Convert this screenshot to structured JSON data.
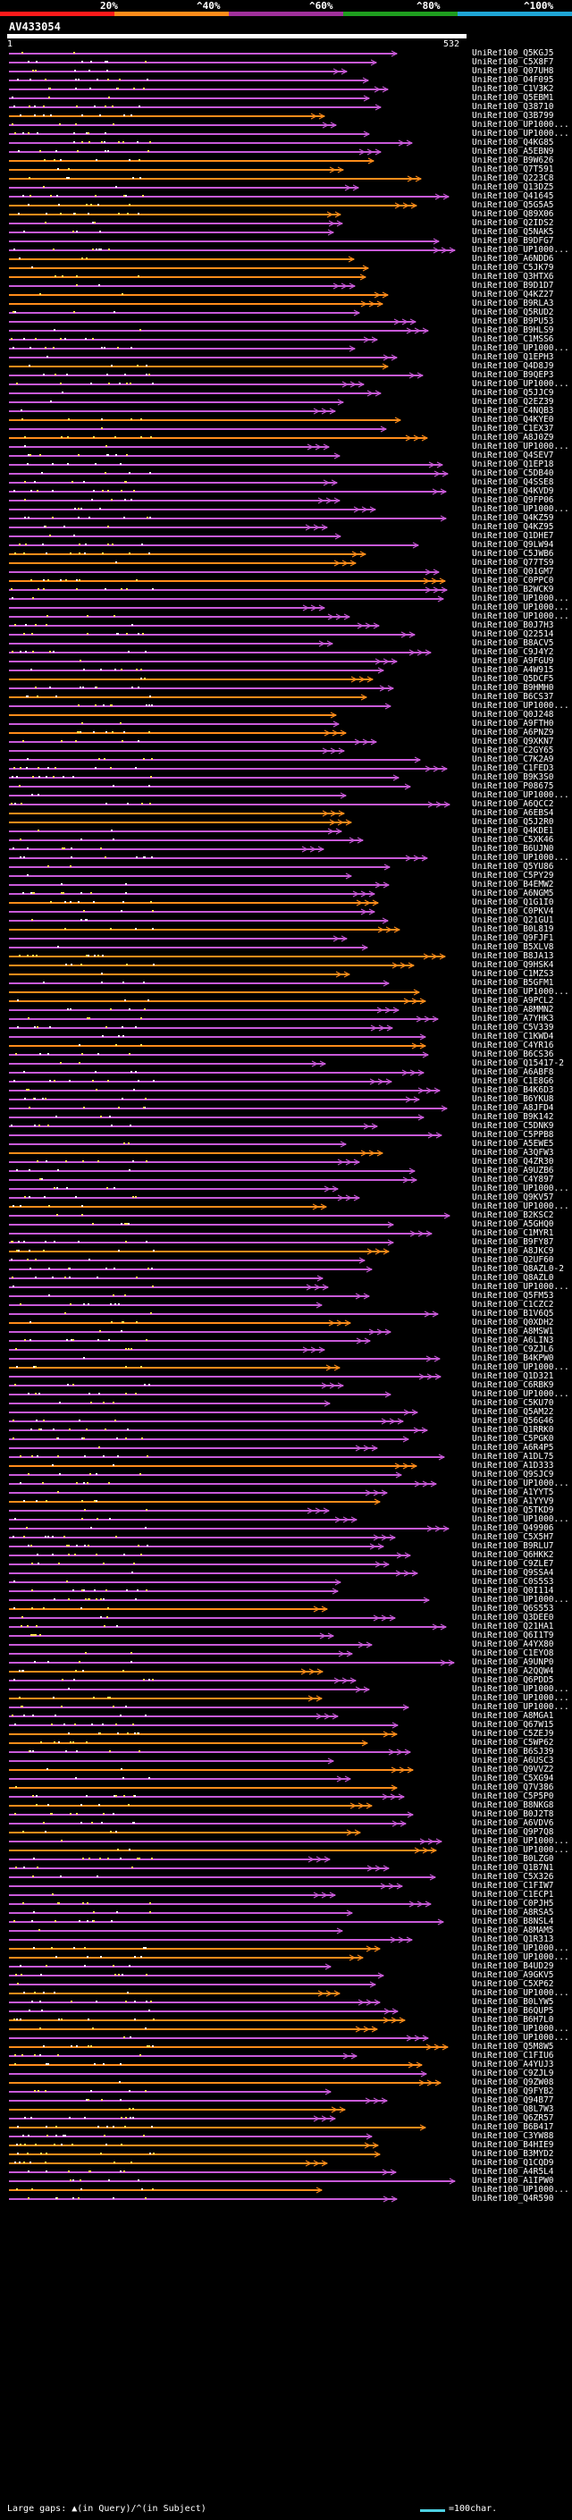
{
  "scale": {
    "labels": [
      "20%",
      "^40%",
      "^60%",
      "^80%",
      "^100%"
    ],
    "colors": [
      "#ff1a1a",
      "#ff8c1a",
      "#a0309b",
      "#1f9e1f",
      "#1fa6d6"
    ]
  },
  "query": {
    "name": "AV433054",
    "start": "1",
    "end": "532"
  },
  "hits": [
    "UniRef100_Q5KGJ5",
    "UniRef100_C5X8F7",
    "UniRef100_Q07UH8",
    "UniRef100_O4F095",
    "UniRef100_C1V3K2",
    "UniRef100_Q5EBM1",
    "UniRef100_Q38710",
    "UniRef100_Q3B799",
    "UniRef100_UP1000...",
    "UniRef100_UP1000...",
    "UniRef100_Q4KG85",
    "UniRef100_A5EBN9",
    "UniRef100_B9W626",
    "UniRef100_Q7T591",
    "UniRef100_Q223C8",
    "UniRef100_Q13DZ5",
    "UniRef100_Q41645",
    "UniRef100_Q5G5A5",
    "UniRef100_Q89X06",
    "UniRef100_Q2IDS2",
    "UniRef100_Q5NAK5",
    "UniRef100_B9DFG7",
    "UniRef100_UP1000...",
    "UniRef100_A6NDD6",
    "UniRef100_C5JK79",
    "UniRef100_Q3HTX6",
    "UniRef100_B9D1D7",
    "UniRef100_Q4KZ27",
    "UniRef100_B9RLA3",
    "UniRef100_Q5RUD2",
    "UniRef100_B9PU53",
    "UniRef100_B9HLS9",
    "UniRef100_C1MSS6",
    "UniRef100_UP1000...",
    "UniRef100_Q1EPH3",
    "UniRef100_Q4D8J9",
    "UniRef100_B9QEP3",
    "UniRef100_UP1000...",
    "UniRef100_Q5JJC9",
    "UniRef100_Q2EZ39",
    "UniRef100_C4NQB3",
    "UniRef100_Q4KYE0",
    "UniRef100_C1EX37",
    "UniRef100_A8J0Z9",
    "UniRef100_UP1000...",
    "UniRef100_Q4SEV7",
    "UniRef100_Q1EP18",
    "UniRef100_C5DB40",
    "UniRef100_Q4SSE8",
    "UniRef100_Q4KVD9",
    "UniRef100_Q9FP06",
    "UniRef100_UP1000...",
    "UniRef100_Q4KZ59",
    "UniRef100_Q4KZ95",
    "UniRef100_Q1DHE7",
    "UniRef100_Q9LW94",
    "UniRef100_C5JWB6",
    "UniRef100_Q77TS9",
    "UniRef100_Q01GM7",
    "UniRef100_C0PPC0",
    "UniRef100_B2WCK9",
    "UniRef100_UP1000...",
    "UniRef100_UP1000...",
    "UniRef100_UP1000...",
    "UniRef100_B0J7H3",
    "UniRef100_Q22514",
    "UniRef100_B8ACV5",
    "UniRef100_C9J4Y2",
    "UniRef100_A9FGU9",
    "UniRef100_A4W915",
    "UniRef100_Q5DCF5",
    "UniRef100_B9HMH0",
    "UniRef100_B6CS37",
    "UniRef100_UP1000...",
    "UniRef100_Q0J248",
    "UniRef100_A9FTH0",
    "UniRef100_A6PNZ9",
    "UniRef100_Q9XKN7",
    "UniRef100_C2GY65",
    "UniRef100_C7K2A9",
    "UniRef100_C1FED3",
    "UniRef100_B9K3S0",
    "UniRef100_P08675",
    "UniRef100_UP1000...",
    "UniRef100_A6QCC2",
    "UniRef100_A6EBS4",
    "UniRef100_Q5J2R0",
    "UniRef100_Q4KDE1",
    "UniRef100_C5XK46",
    "UniRef100_B6UJN0",
    "UniRef100_UP1000...",
    "UniRef100_Q5YU86",
    "UniRef100_C5PY29",
    "UniRef100_B4EMW2",
    "UniRef100_A6NGM5",
    "UniRef100_Q1G1I0",
    "UniRef100_C0PKV4",
    "UniRef100_Q21GU1",
    "UniRef100_B0L819",
    "UniRef100_Q9FJF1",
    "UniRef100_B5XLV8",
    "UniRef100_B8JA13",
    "UniRef100_Q9HSK4",
    "UniRef100_C1MZS3",
    "UniRef100_B5GFM1",
    "UniRef100_UP1000...",
    "UniRef100_A9PCL2",
    "UniRef100_A8MMN2",
    "UniRef100_A7YHK3",
    "UniRef100_C5V339",
    "UniRef100_C1KWD4",
    "UniRef100_C4YR16",
    "UniRef100_B6CS36",
    "UniRef100_Q15417-2",
    "UniRef100_A6ABF8",
    "UniRef100_C1E8G6",
    "UniRef100_B4K6D3",
    "UniRef100_B6YKU8",
    "UniRef100_A8JFD4",
    "UniRef100_B9K142",
    "UniRef100_C5DNK9",
    "UniRef100_C5PPB8",
    "UniRef100_A5EWE5",
    "UniRef100_A3QFW3",
    "UniRef100_Q4ZR30",
    "UniRef100_A9UZB6",
    "UniRef100_C4Y897",
    "UniRef100_UP1000...",
    "UniRef100_Q9KV57",
    "UniRef100_UP1000...",
    "UniRef100_B2KSC2",
    "UniRef100_A5GHQ0",
    "UniRef100_C1MYR1",
    "UniRef100_B9FY87",
    "UniRef100_A8JKC9",
    "UniRef100_Q2UF60",
    "UniRef100_Q8AZL0-2",
    "UniRef100_Q8AZL0",
    "UniRef100_UP1000...",
    "UniRef100_Q5FM53",
    "UniRef100_C1CZC2",
    "UniRef100_B1V6Q5",
    "UniRef100_Q0XDH2",
    "UniRef100_A8MSW1",
    "UniRef100_A6LIN3",
    "UniRef100_C9ZJL6",
    "UniRef100_B4KPW0",
    "UniRef100_UP1000...",
    "UniRef100_Q1D321",
    "UniRef100_C6RBK9",
    "UniRef100_UP1000...",
    "UniRef100_C5KU70",
    "UniRef100_Q5AM22",
    "UniRef100_Q56G46",
    "UniRef100_Q1RRK0",
    "UniRef100_C5PGK0",
    "UniRef100_A6R4P5",
    "UniRef100_A1DL75",
    "UniRef100_A1D333",
    "UniRef100_Q9SJC9",
    "UniRef100_UP1000...",
    "UniRef100_A1YYT5",
    "UniRef100_A1YYV9",
    "UniRef100_Q5TKD9",
    "UniRef100_UP1000...",
    "UniRef100_Q49906",
    "UniRef100_C5X5H7",
    "UniRef100_B9RLU7",
    "UniRef100_Q6HKK2",
    "UniRef100_C9ZLE7",
    "UniRef100_Q9SSA4",
    "UniRef100_C0S5S3",
    "UniRef100_Q0I114",
    "UniRef100_UP1000...",
    "UniRef100_Q6S553",
    "UniRef100_Q3DEE0",
    "UniRef100_Q21HA1",
    "UniRef100_Q6I1T9",
    "UniRef100_A4YX80",
    "UniRef100_C1EYO8",
    "UniRef100_A9UNP0",
    "UniRef100_A2QQW4",
    "UniRef100_Q6PDD5",
    "UniRef100_UP1000...",
    "UniRef100_UP1000...",
    "UniRef100_UP1000...",
    "UniRef100_A8MGA1",
    "UniRef100_Q67W15",
    "UniRef100_C5ZEJ9",
    "UniRef100_C5WP62",
    "UniRef100_B6SJ39",
    "UniRef100_A6USC3",
    "UniRef100_Q9VVZ2",
    "UniRef100_C5XG94",
    "UniRef100_Q7V386",
    "UniRef100_C5P5P0",
    "UniRef100_B8NKG8",
    "UniRef100_B0J2T8",
    "UniRef100_A6VDV6",
    "UniRef100_Q9P7Q8",
    "UniRef100_UP1000...",
    "UniRef100_UP1000...",
    "UniRef100_B0LZG0",
    "UniRef100_Q1B7N1",
    "UniRef100_C5X326",
    "UniRef100_C1FIW7",
    "UniRef100_C1ECP1",
    "UniRef100_C0PJH5",
    "UniRef100_A8RSA5",
    "UniRef100_B8NSL4",
    "UniRef100_A8MAM5",
    "UniRef100_Q1R313",
    "UniRef100_UP1000...",
    "UniRef100_UP1000...",
    "UniRef100_B4UD29",
    "UniRef100_A9GKV5",
    "UniRef100_C5XP62",
    "UniRef100_UP1000...",
    "UniRef100_B0LYW5",
    "UniRef100_B6QUP5",
    "UniRef100_B6H7L0",
    "UniRef100_UP1000...",
    "UniRef100_UP1000...",
    "UniRef100_Q5M8W5",
    "UniRef100_C1FIU6",
    "UniRef100_A4YUJ3",
    "UniRef100_C9ZJL9",
    "UniRef100_Q9ZW08",
    "UniRef100_Q9FYB2",
    "UniRef100_Q94B77",
    "UniRef100_Q8L7W3",
    "UniRef100_Q6ZR57",
    "UniRef100_B6B417",
    "UniRef100_C3YW88",
    "UniRef100_B4HIE9",
    "UniRef100_B3MYD2",
    "UniRef100_Q1CQD9",
    "UniRef100_A4R5L4",
    "UniRef100_A1IPW0",
    "UniRef100_UP1000...",
    "UniRef100_Q4R590"
  ],
  "legend": {
    "gaps_label": "Large gaps: ▲(in Query)/^(in Subject)",
    "scale_label": "=100char."
  }
}
